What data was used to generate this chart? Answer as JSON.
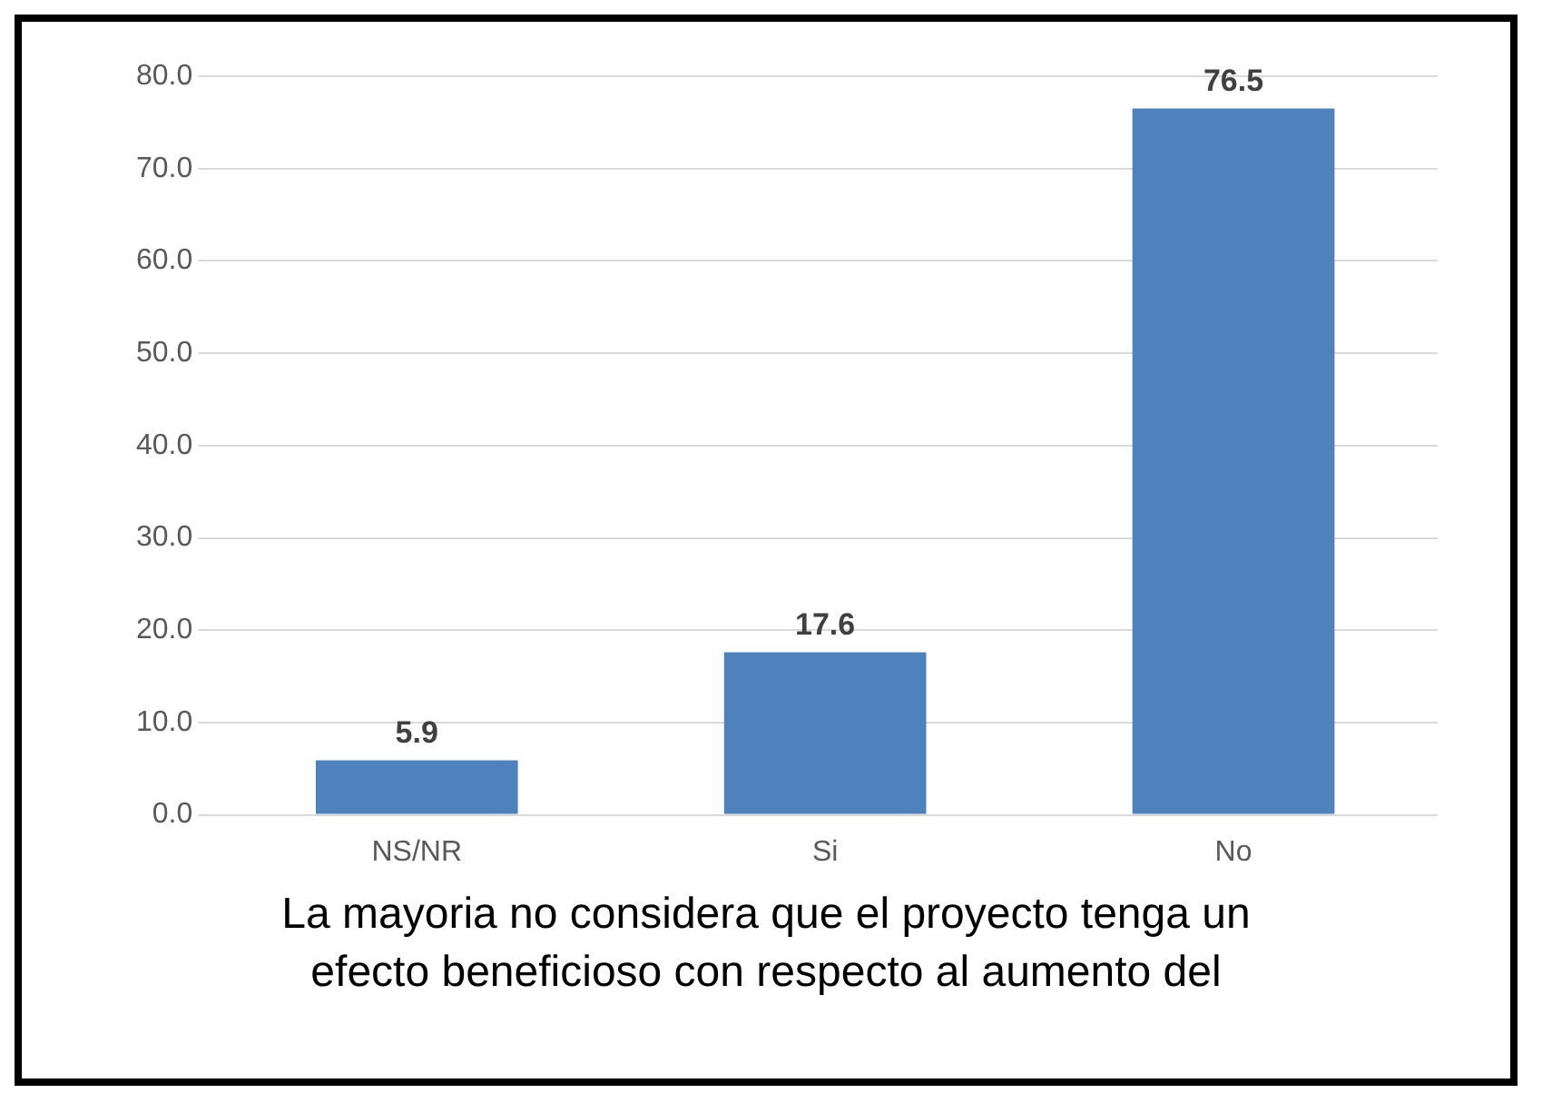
{
  "chart_data": {
    "type": "bar",
    "categories": [
      "NS/NR",
      "Si",
      "No"
    ],
    "values": [
      5.9,
      17.6,
      76.5
    ],
    "color": "#4f81bd",
    "ylim": [
      0,
      80
    ],
    "yticks": [
      {
        "value": 0,
        "label": "0.0"
      },
      {
        "value": 10,
        "label": "10.0"
      },
      {
        "value": 20,
        "label": "20.0"
      },
      {
        "value": 30,
        "label": "30.0"
      },
      {
        "value": 40,
        "label": "40.0"
      },
      {
        "value": 50,
        "label": "50.0"
      },
      {
        "value": 60,
        "label": "60.0"
      },
      {
        "value": 70,
        "label": "70.0"
      },
      {
        "value": 80,
        "label": "80.0"
      }
    ],
    "grid": "y",
    "data_labels": true,
    "annotations": [
      "La mayoria no considera que el proyecto tenga un efecto beneficioso con respecto al aumento del"
    ]
  }
}
